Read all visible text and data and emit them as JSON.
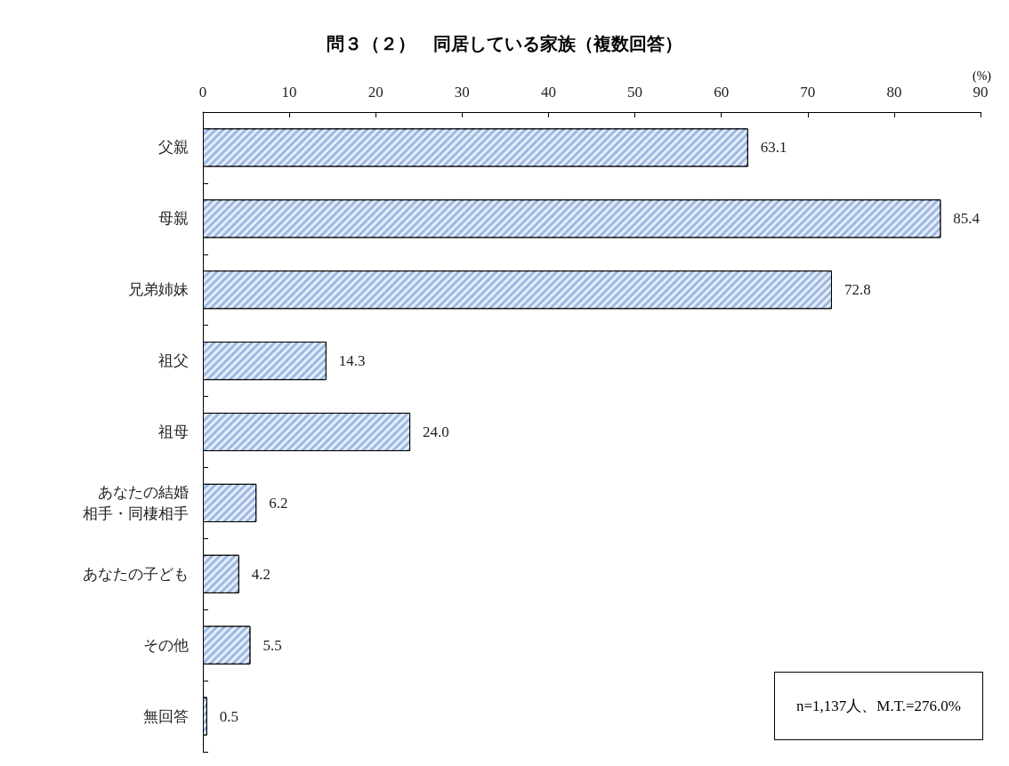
{
  "chart_data": {
    "type": "bar",
    "orientation": "horizontal",
    "title": "問３（２）　同居している家族（複数回答）",
    "xlabel": "(%)",
    "categories": [
      "父親",
      "母親",
      "兄弟姉妹",
      "祖父",
      "祖母",
      "あなたの結婚相手・同棲相手",
      "あなたの子ども",
      "その他",
      "無回答"
    ],
    "values": [
      63.1,
      85.4,
      72.8,
      14.3,
      24.0,
      6.2,
      4.2,
      5.5,
      0.5
    ],
    "value_labels": [
      "63.1",
      "85.4",
      "72.8",
      "14.3",
      "24.0",
      "6.2",
      "4.2",
      "5.5",
      "0.5"
    ],
    "color": "#9db9e3",
    "xlim": [
      0,
      90
    ],
    "xticks": [
      0,
      10,
      20,
      30,
      40,
      50,
      60,
      70,
      80,
      90
    ],
    "grid": false,
    "annotations": [
      "n=1,137人、M.T.=276.0%"
    ]
  }
}
